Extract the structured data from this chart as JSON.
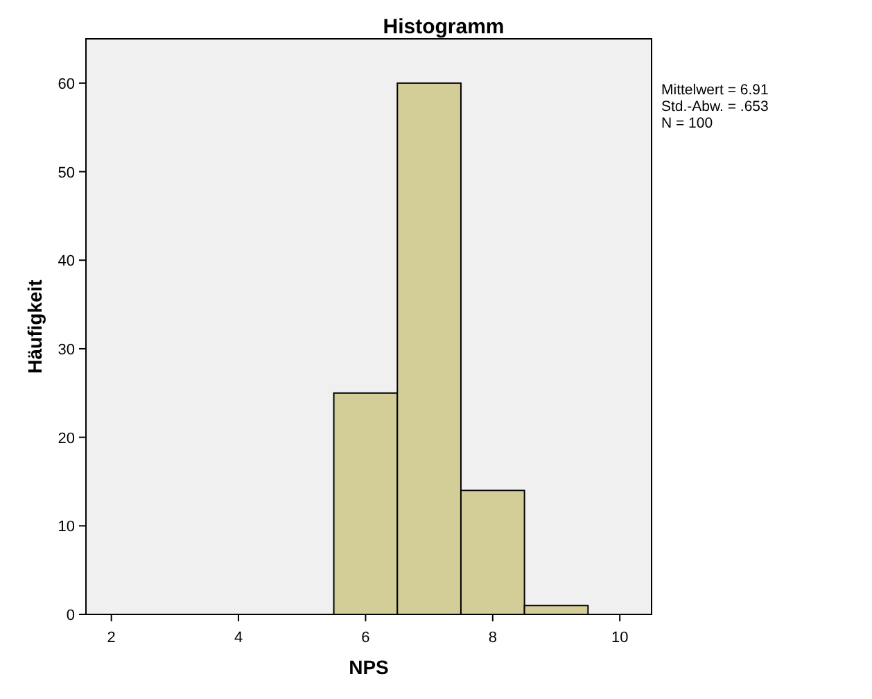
{
  "chart_data": {
    "type": "histogram",
    "title": "Histogramm",
    "xlabel": "NPS",
    "ylabel": "Häufigkeit",
    "bins": [
      5.5,
      6.5,
      7.5,
      8.5,
      9.5
    ],
    "values": [
      25,
      60,
      14,
      1
    ],
    "color": "#d3ce97",
    "xlim": [
      1.6,
      10.5
    ],
    "xticks": [
      2,
      4,
      6,
      8,
      10
    ],
    "ylim": [
      0,
      65
    ],
    "yticks": [
      0,
      10,
      20,
      30,
      40,
      50,
      60
    ],
    "grid": false,
    "annotations": [
      "Mittelwert = 6.91",
      "Std.-Abw. = .653",
      "N = 100"
    ]
  }
}
